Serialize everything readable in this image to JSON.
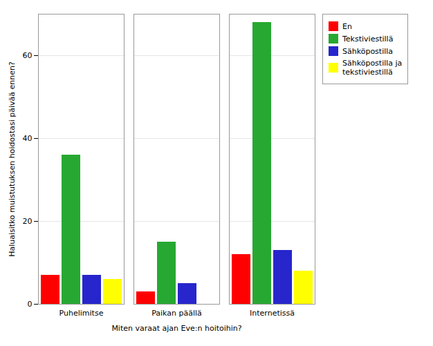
{
  "chart_data": {
    "type": "bar",
    "categories": [
      "Puhelimitse",
      "Paikan päällä",
      "Internetissä"
    ],
    "series": [
      {
        "name": "En",
        "color": "#FF0000",
        "values": [
          7,
          3,
          12
        ]
      },
      {
        "name": "Tekstiviestillä",
        "color": "#27A832",
        "values": [
          36,
          15,
          68
        ]
      },
      {
        "name": "Sähköpostilla",
        "color": "#2626CC",
        "values": [
          7,
          5,
          13
        ]
      },
      {
        "name": "Sähköpostilla ja\ntekstiviestillä",
        "color": "#FFFF00",
        "values": [
          6,
          0,
          8
        ]
      }
    ],
    "xlabel": "Miten varaat ajan Eve:n hoitoihin?",
    "ylabel": "Haluaisitko muistutuksen hoidostasi päivää ennen?",
    "ylim": [
      0,
      70
    ],
    "yticks": [
      0,
      20,
      40,
      60
    ],
    "grid": true,
    "legend": "right"
  }
}
